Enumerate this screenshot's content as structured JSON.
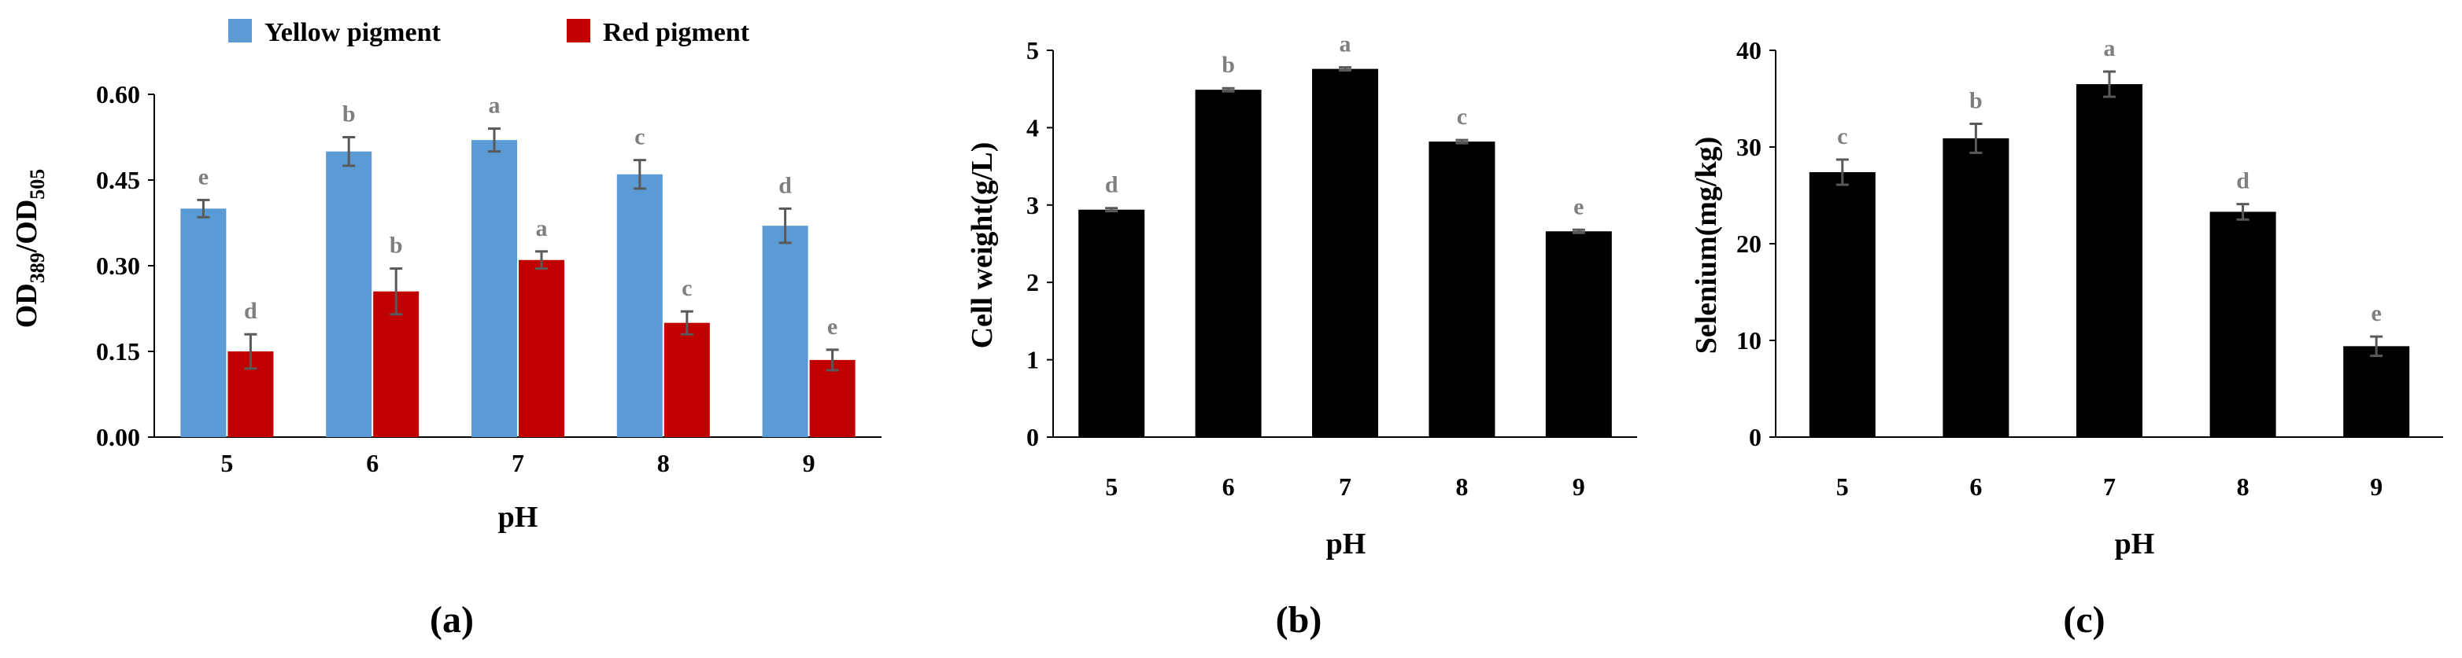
{
  "chart_data": [
    {
      "type": "bar",
      "panel_label": "(a)",
      "categories": [
        "5",
        "6",
        "7",
        "8",
        "9"
      ],
      "xlabel": "pH",
      "ylabel": "OD389/OD505",
      "ylabel_parts": {
        "a": "OD",
        "a_sub": "389",
        "b": "/OD",
        "b_sub": "505"
      },
      "ylim": [
        0,
        0.6
      ],
      "yticks": [
        "0.00",
        "0.15",
        "0.30",
        "0.45",
        "0.60"
      ],
      "legend_position": "top",
      "series": [
        {
          "name": "Yellow pigment",
          "color": "#5b9bd5",
          "values": [
            0.4,
            0.5,
            0.52,
            0.46,
            0.37
          ],
          "errors": [
            0.015,
            0.025,
            0.02,
            0.025,
            0.03
          ],
          "letters": [
            "e",
            "b",
            "a",
            "c",
            "d"
          ]
        },
        {
          "name": "Red pigment",
          "color": "#c00000",
          "values": [
            0.15,
            0.255,
            0.31,
            0.2,
            0.135
          ],
          "errors": [
            0.03,
            0.04,
            0.015,
            0.02,
            0.018
          ],
          "letters": [
            "d",
            "b",
            "a",
            "c",
            "e"
          ]
        }
      ]
    },
    {
      "type": "bar",
      "panel_label": "(b)",
      "categories": [
        "5",
        "6",
        "7",
        "8",
        "9"
      ],
      "xlabel": "pH",
      "ylabel": "Cell weight(g/L)",
      "ylim": [
        0,
        5
      ],
      "yticks": [
        "0",
        "1",
        "2",
        "3",
        "4",
        "5"
      ],
      "series": [
        {
          "color": "#000000",
          "values": [
            2.94,
            4.49,
            4.76,
            3.82,
            2.66
          ],
          "errors": [
            0.02,
            0.02,
            0.02,
            0.02,
            0.02
          ],
          "letters": [
            "d",
            "b",
            "a",
            "c",
            "e"
          ]
        }
      ]
    },
    {
      "type": "bar",
      "panel_label": "(c)",
      "categories": [
        "5",
        "6",
        "7",
        "8",
        "9"
      ],
      "xlabel": "pH",
      "ylabel": "Selenium(mg/kg)",
      "ylim": [
        0,
        40
      ],
      "yticks": [
        "0",
        "10",
        "20",
        "30",
        "40"
      ],
      "series": [
        {
          "color": "#000000",
          "values": [
            27.4,
            30.9,
            36.5,
            23.3,
            9.4
          ],
          "errors": [
            1.3,
            1.5,
            1.3,
            0.8,
            1.0
          ],
          "letters": [
            "c",
            "b",
            "a",
            "d",
            "e"
          ]
        }
      ]
    }
  ]
}
